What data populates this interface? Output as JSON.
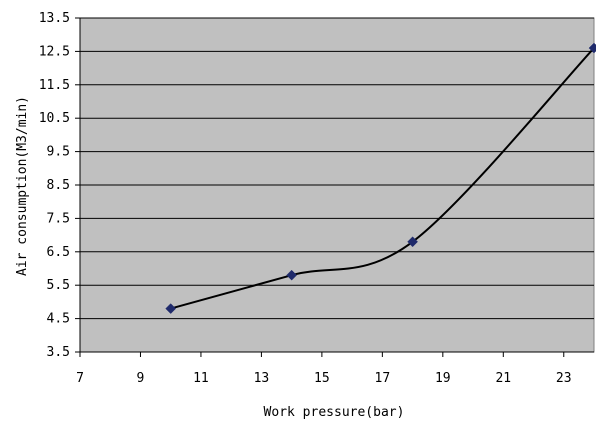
{
  "chart_data": {
    "type": "scatter",
    "xlabel": "Work pressure(bar)",
    "ylabel": "Air consumption(M3/min)",
    "xlim": [
      7,
      24
    ],
    "ylim": [
      3.5,
      13.5
    ],
    "x_ticks": [
      "7",
      "9",
      "11",
      "13",
      "15",
      "17",
      "19",
      "21",
      "23"
    ],
    "y_ticks": [
      "3.5",
      "4.5",
      "5.5",
      "6.5",
      "7.5",
      "8.5",
      "9.5",
      "10.5",
      "11.5",
      "12.5",
      "13.5"
    ],
    "grid": "horizontal",
    "smoothed": true,
    "series": [
      {
        "x": [
          10,
          14,
          18,
          24
        ],
        "y": [
          4.8,
          5.8,
          6.8,
          12.6
        ],
        "color": "#000000",
        "marker_color": "#1f2a6b"
      }
    ],
    "plot_background": "#c0c0c0",
    "legend": "none"
  }
}
